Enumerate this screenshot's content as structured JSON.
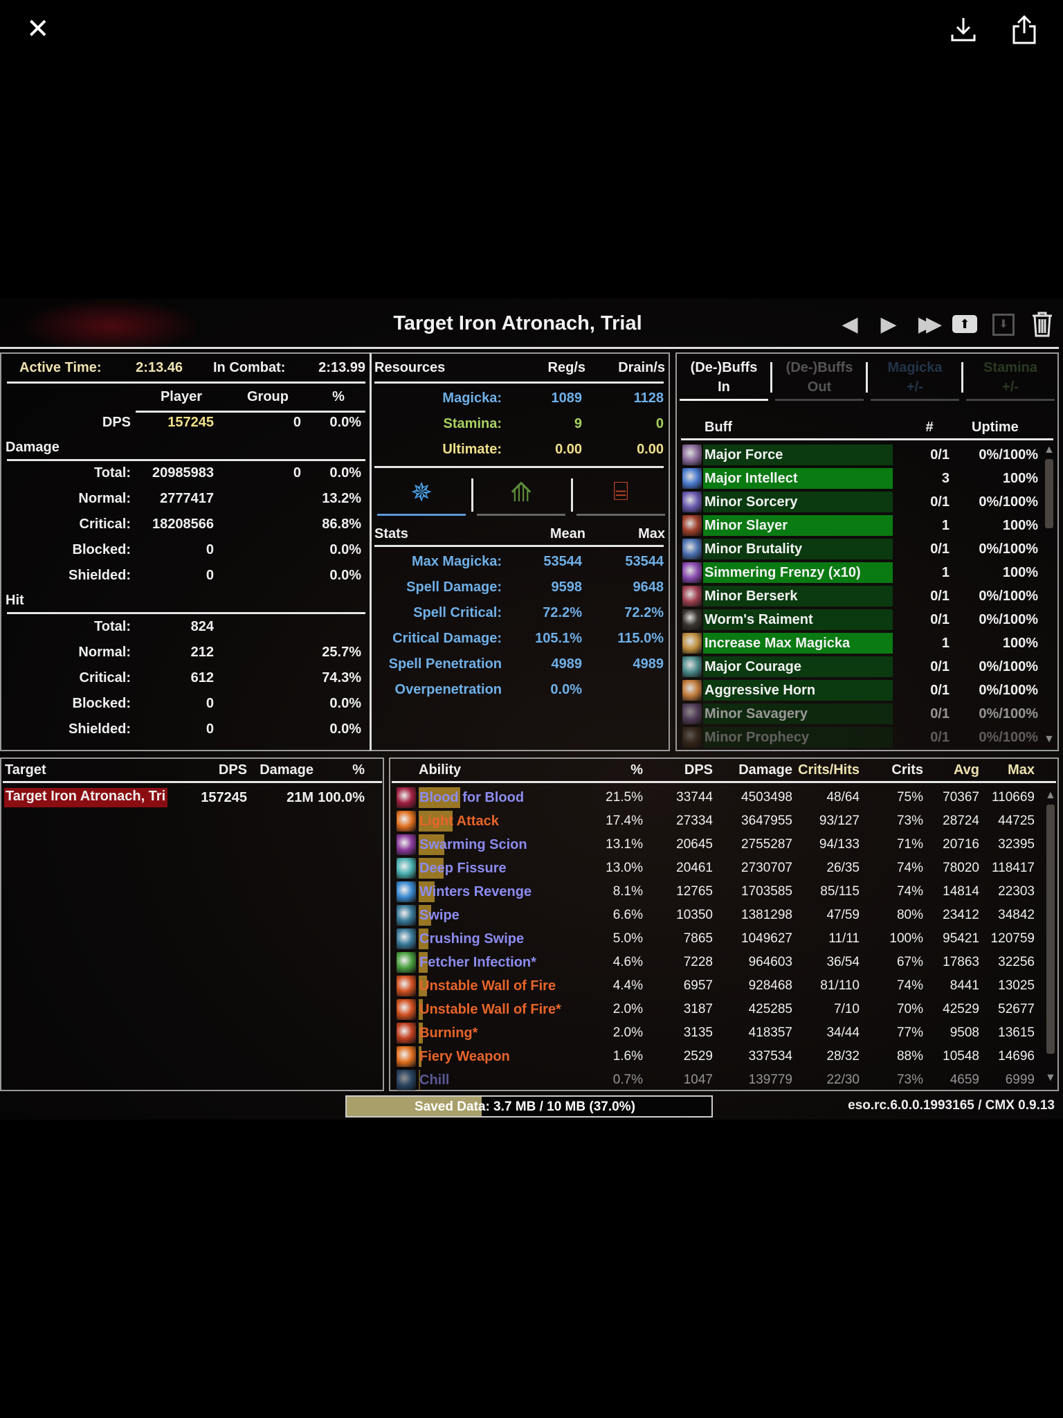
{
  "viewer": {
    "close_icon": "close-icon",
    "download_icon": "download-icon",
    "share_icon": "share-icon"
  },
  "window": {
    "title": "Target Iron Atronach, Trial",
    "nav_icons": [
      "previous-fight-icon",
      "next-fight-icon",
      "last-fight-icon",
      "upload-icon",
      "save-icon",
      "delete-icon"
    ]
  },
  "summary": {
    "active_time_label": "Active Time:",
    "active_time": "2:13.46",
    "in_combat_label": "In Combat:",
    "in_combat": "2:13.99",
    "headers": [
      "Player",
      "Group",
      "%"
    ],
    "dps": {
      "label": "DPS",
      "player": "157245",
      "group": "0",
      "pct": "0.0%"
    },
    "damage_title": "Damage",
    "damage": [
      {
        "label": "Total:",
        "player": "20985983",
        "group": "0",
        "pct": "0.0%"
      },
      {
        "label": "Normal:",
        "player": "2777417",
        "group": "",
        "pct": "13.2%"
      },
      {
        "label": "Critical:",
        "player": "18208566",
        "group": "",
        "pct": "86.8%"
      },
      {
        "label": "Blocked:",
        "player": "0",
        "group": "",
        "pct": "0.0%"
      },
      {
        "label": "Shielded:",
        "player": "0",
        "group": "",
        "pct": "0.0%"
      }
    ],
    "hit_title": "Hit",
    "hit": [
      {
        "label": "Total:",
        "player": "824",
        "group": "",
        "pct": ""
      },
      {
        "label": "Normal:",
        "player": "212",
        "group": "",
        "pct": "25.7%"
      },
      {
        "label": "Critical:",
        "player": "612",
        "group": "",
        "pct": "74.3%"
      },
      {
        "label": "Blocked:",
        "player": "0",
        "group": "",
        "pct": "0.0%"
      },
      {
        "label": "Shielded:",
        "player": "0",
        "group": "",
        "pct": "0.0%"
      }
    ]
  },
  "resources": {
    "headers": [
      "Resources",
      "Reg/s",
      "Drain/s"
    ],
    "rows": [
      {
        "label": "Magicka:",
        "reg": "1089",
        "drain": "1128",
        "color": "#6fb0e8"
      },
      {
        "label": "Stamina:",
        "reg": "9",
        "drain": "0",
        "color": "#a8d060"
      },
      {
        "label": "Ultimate:",
        "reg": "0.00",
        "drain": "0.00",
        "color": "#f0e08a"
      }
    ],
    "stat_tabs": [
      {
        "icon": "magicka-stats-icon",
        "color": "#4aa0e8",
        "active": true
      },
      {
        "icon": "stamina-stats-icon",
        "color": "#5a8a3a",
        "active": false
      },
      {
        "icon": "health-stats-icon",
        "color": "#c0442a",
        "active": false
      }
    ],
    "stats_headers": [
      "Stats",
      "Mean",
      "Max"
    ],
    "stats": [
      {
        "label": "Max Magicka:",
        "mean": "53544",
        "max": "53544"
      },
      {
        "label": "Spell Damage:",
        "mean": "9598",
        "max": "9648"
      },
      {
        "label": "Spell Critical:",
        "mean": "72.2%",
        "max": "72.2%"
      },
      {
        "label": "Critical Damage:",
        "mean": "105.1%",
        "max": "115.0%"
      },
      {
        "label": "Spell Penetration",
        "mean": "4989",
        "max": "4989"
      },
      {
        "label": "Overpenetration",
        "mean": "0.0%",
        "max": ""
      }
    ]
  },
  "buffs": {
    "tabs": [
      {
        "line1": "(De-)Buffs",
        "line2": "In",
        "color": "#f2f2f2"
      },
      {
        "line1": "(De-)Buffs",
        "line2": "Out",
        "color": "#555555"
      },
      {
        "line1": "Magicka",
        "line2": "+/-",
        "color": "#23354a"
      },
      {
        "line1": "Stamina",
        "line2": "+/-",
        "color": "#2a3a22"
      }
    ],
    "headers": [
      "Buff",
      "#",
      "Uptime"
    ],
    "rows": [
      {
        "name": "Major Force",
        "count": "0/1",
        "uptime": "0%/100%",
        "active": false,
        "icon_color": "#8a6a9a"
      },
      {
        "name": "Major Intellect",
        "count": "3",
        "uptime": "100%",
        "active": true,
        "icon_color": "#4a7ad0"
      },
      {
        "name": "Minor Sorcery",
        "count": "0/1",
        "uptime": "0%/100%",
        "active": false,
        "icon_color": "#6a5ab0"
      },
      {
        "name": "Minor Slayer",
        "count": "1",
        "uptime": "100%",
        "active": true,
        "icon_color": "#a0402a"
      },
      {
        "name": "Minor Brutality",
        "count": "0/1",
        "uptime": "0%/100%",
        "active": false,
        "icon_color": "#4a70b0"
      },
      {
        "name": "Simmering Frenzy (x10)",
        "count": "1",
        "uptime": "100%",
        "active": true,
        "icon_color": "#8a4ab0"
      },
      {
        "name": "Minor Berserk",
        "count": "0/1",
        "uptime": "0%/100%",
        "active": false,
        "icon_color": "#a04050"
      },
      {
        "name": "Worm's Raiment",
        "count": "0/1",
        "uptime": "0%/100%",
        "active": false,
        "icon_color": "#3a3530"
      },
      {
        "name": "Increase Max Magicka",
        "count": "1",
        "uptime": "100%",
        "active": true,
        "icon_color": "#c09040"
      },
      {
        "name": "Major Courage",
        "count": "0/1",
        "uptime": "0%/100%",
        "active": false,
        "icon_color": "#4a8a8a"
      },
      {
        "name": "Aggressive Horn",
        "count": "0/1",
        "uptime": "0%/100%",
        "active": false,
        "icon_color": "#c07a3a"
      },
      {
        "name": "Minor Savagery",
        "count": "0/1",
        "uptime": "0%/100%",
        "active": false,
        "icon_color": "#7a5a8a"
      },
      {
        "name": "Minor Prophecy",
        "count": "0/1",
        "uptime": "0%/100%",
        "active": false,
        "icon_color": "#6a4a2a"
      }
    ]
  },
  "targets": {
    "headers": [
      "Target",
      "DPS",
      "Damage",
      "%"
    ],
    "rows": [
      {
        "name": "Target Iron Atronach, Tri",
        "dps": "157245",
        "damage": "21M",
        "pct": "100.0%"
      }
    ]
  },
  "abilities": {
    "headers": [
      "Ability",
      "%",
      "DPS",
      "Damage",
      "Crits/Hits",
      "Crits",
      "Avg",
      "Max"
    ],
    "rows": [
      {
        "name": "Blood for Blood",
        "pct": "21.5%",
        "dps": "33744",
        "damage": "4503498",
        "crits_hits": "48/64",
        "crits": "75%",
        "avg": "70367",
        "max": "110669",
        "share": 21.5,
        "school": "magic",
        "icon_color": "#a02040"
      },
      {
        "name": "Light Attack",
        "pct": "17.4%",
        "dps": "27334",
        "damage": "3647955",
        "crits_hits": "93/127",
        "crits": "73%",
        "avg": "28724",
        "max": "44725",
        "share": 17.4,
        "school": "fire",
        "icon_color": "#e07020"
      },
      {
        "name": "Swarming Scion",
        "pct": "13.1%",
        "dps": "20645",
        "damage": "2755287",
        "crits_hits": "94/133",
        "crits": "71%",
        "avg": "20716",
        "max": "32395",
        "share": 13.1,
        "school": "magic",
        "icon_color": "#8a3a9a"
      },
      {
        "name": "Deep Fissure",
        "pct": "13.0%",
        "dps": "20461",
        "damage": "2730707",
        "crits_hits": "26/35",
        "crits": "74%",
        "avg": "78020",
        "max": "118417",
        "share": 13.0,
        "school": "magic",
        "icon_color": "#4ab0b0"
      },
      {
        "name": "Winters Revenge",
        "pct": "8.1%",
        "dps": "12765",
        "damage": "1703585",
        "crits_hits": "85/115",
        "crits": "74%",
        "avg": "14814",
        "max": "22303",
        "share": 8.1,
        "school": "magic",
        "icon_color": "#3a8ad0"
      },
      {
        "name": "Swipe",
        "pct": "6.6%",
        "dps": "10350",
        "damage": "1381298",
        "crits_hits": "47/59",
        "crits": "80%",
        "avg": "23412",
        "max": "34842",
        "share": 6.6,
        "school": "magic",
        "icon_color": "#3a7a9a"
      },
      {
        "name": "Crushing Swipe",
        "pct": "5.0%",
        "dps": "7865",
        "damage": "1049627",
        "crits_hits": "11/11",
        "crits": "100%",
        "avg": "95421",
        "max": "120759",
        "share": 5.0,
        "school": "magic",
        "icon_color": "#3a7a9a"
      },
      {
        "name": "Fetcher Infection*",
        "pct": "4.6%",
        "dps": "7228",
        "damage": "964603",
        "crits_hits": "36/54",
        "crits": "67%",
        "avg": "17863",
        "max": "32256",
        "share": 4.6,
        "school": "magic",
        "icon_color": "#4aa040"
      },
      {
        "name": "Unstable Wall of Fire",
        "pct": "4.4%",
        "dps": "6957",
        "damage": "928468",
        "crits_hits": "81/110",
        "crits": "74%",
        "avg": "8441",
        "max": "13025",
        "share": 4.4,
        "school": "fire",
        "icon_color": "#d05020"
      },
      {
        "name": "Unstable Wall of Fire*",
        "pct": "2.0%",
        "dps": "3187",
        "damage": "425285",
        "crits_hits": "7/10",
        "crits": "70%",
        "avg": "42529",
        "max": "52677",
        "share": 2.0,
        "school": "fire",
        "icon_color": "#d05020"
      },
      {
        "name": "Burning*",
        "pct": "2.0%",
        "dps": "3135",
        "damage": "418357",
        "crits_hits": "34/44",
        "crits": "77%",
        "avg": "9508",
        "max": "13615",
        "share": 2.0,
        "school": "fire",
        "icon_color": "#c04020"
      },
      {
        "name": "Fiery Weapon",
        "pct": "1.6%",
        "dps": "2529",
        "damage": "337534",
        "crits_hits": "28/32",
        "crits": "88%",
        "avg": "10548",
        "max": "14696",
        "share": 1.6,
        "school": "fire",
        "icon_color": "#e07020"
      },
      {
        "name": "Chill",
        "pct": "0.7%",
        "dps": "1047",
        "damage": "139779",
        "crits_hits": "22/30",
        "crits": "73%",
        "avg": "4659",
        "max": "6999",
        "share": 0.7,
        "school": "magic",
        "icon_color": "#3a6a9a"
      }
    ]
  },
  "status": {
    "saved_data": "Saved Data: 3.7 MB / 10 MB (37.0%)",
    "saved_fraction": 0.37,
    "version": "eso.rc.6.0.0.1993165 / CMX 0.9.13"
  },
  "colors": {
    "magic": "#8c8cf0",
    "fire": "#e8642a",
    "bar_gold": "#b08a2a",
    "buff_active": "#0a7a12",
    "buff_inactive": "#0b3a10"
  }
}
